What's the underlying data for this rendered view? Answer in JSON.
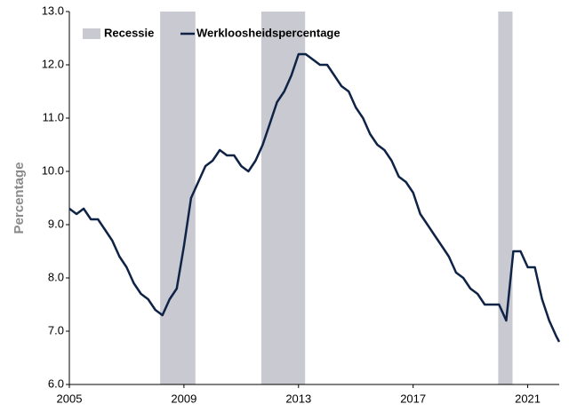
{
  "chart_data": {
    "type": "line",
    "y_label": "Percentage",
    "x": [
      2005.0,
      2005.25,
      2005.5,
      2005.75,
      2006.0,
      2006.25,
      2006.5,
      2006.75,
      2007.0,
      2007.25,
      2007.5,
      2007.75,
      2008.0,
      2008.25,
      2008.5,
      2008.75,
      2009.0,
      2009.25,
      2009.5,
      2009.75,
      2010.0,
      2010.25,
      2010.5,
      2010.75,
      2011.0,
      2011.25,
      2011.5,
      2011.75,
      2012.0,
      2012.25,
      2012.5,
      2012.75,
      2013.0,
      2013.25,
      2013.5,
      2013.75,
      2014.0,
      2014.25,
      2014.5,
      2014.75,
      2015.0,
      2015.25,
      2015.5,
      2015.75,
      2016.0,
      2016.25,
      2016.5,
      2016.75,
      2017.0,
      2017.25,
      2017.5,
      2017.75,
      2018.0,
      2018.25,
      2018.5,
      2018.75,
      2019.0,
      2019.25,
      2019.5,
      2019.75,
      2020.0,
      2020.25,
      2020.5,
      2020.75,
      2021.0,
      2021.25,
      2021.5,
      2021.75,
      2022.0,
      2022.1
    ],
    "series": [
      {
        "name": "Werkloosheidspercentage",
        "color": "#0f2346",
        "values": [
          9.3,
          9.2,
          9.3,
          9.1,
          9.1,
          8.9,
          8.7,
          8.4,
          8.2,
          7.9,
          7.7,
          7.6,
          7.4,
          7.3,
          7.6,
          7.8,
          8.6,
          9.5,
          9.8,
          10.1,
          10.2,
          10.4,
          10.3,
          10.3,
          10.1,
          10.0,
          10.2,
          10.5,
          10.9,
          11.3,
          11.5,
          11.8,
          12.2,
          12.2,
          12.1,
          12.0,
          12.0,
          11.8,
          11.6,
          11.5,
          11.2,
          11.0,
          10.7,
          10.5,
          10.4,
          10.2,
          9.9,
          9.8,
          9.6,
          9.2,
          9.0,
          8.8,
          8.6,
          8.4,
          8.1,
          8.0,
          7.8,
          7.7,
          7.5,
          7.5,
          7.5,
          7.2,
          8.5,
          8.5,
          8.2,
          8.2,
          7.6,
          7.2,
          6.9,
          6.8
        ]
      }
    ],
    "recessions": {
      "name": "Recessie",
      "color": "#c9c9d1",
      "spans": [
        [
          2008.17,
          2009.4
        ],
        [
          2011.7,
          2013.23
        ],
        [
          2019.97,
          2020.47
        ]
      ]
    },
    "xlim": [
      2005,
      2022.1
    ],
    "xticks": [
      2005,
      2009,
      2013,
      2017,
      2021
    ],
    "ylim": [
      6.0,
      13.0
    ],
    "yticks": [
      {
        "value": 6.0,
        "label": "6.0"
      },
      {
        "value": 7.0,
        "label": "7.0"
      },
      {
        "value": 8.0,
        "label": "8.0"
      },
      {
        "value": 9.0,
        "label": "9.0"
      },
      {
        "value": 10.0,
        "label": "10.0"
      },
      {
        "value": 11.0,
        "label": "11.0"
      },
      {
        "value": 12.0,
        "label": "12.0"
      },
      {
        "value": 13.0,
        "label": "13.0"
      }
    ],
    "legend": "upper left"
  }
}
